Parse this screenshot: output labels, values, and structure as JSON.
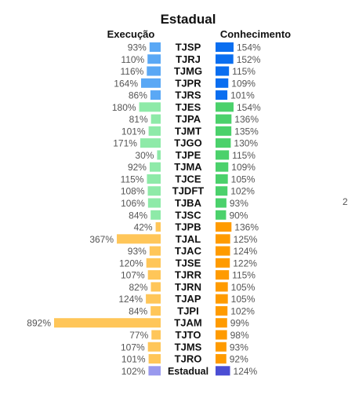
{
  "chart_data": {
    "type": "bar",
    "title": "Estadual",
    "left_header": "Execução",
    "right_header": "Conhecimento",
    "value_suffix": "%",
    "categories": [
      "TJSP",
      "TJRJ",
      "TJMG",
      "TJPR",
      "TJRS",
      "TJES",
      "TJPA",
      "TJMT",
      "TJGO",
      "TJPE",
      "TJMA",
      "TJCE",
      "TJDFT",
      "TJBA",
      "TJSC",
      "TJPB",
      "TJAL",
      "TJAC",
      "TJSE",
      "TJRR",
      "TJRN",
      "TJAP",
      "TJPI",
      "TJAM",
      "TJTO",
      "TJMS",
      "TJRO",
      "Estadual"
    ],
    "groups": [
      "blue",
      "blue",
      "blue",
      "blue",
      "blue",
      "green",
      "green",
      "green",
      "green",
      "green",
      "green",
      "green",
      "green",
      "green",
      "green",
      "orange",
      "orange",
      "orange",
      "orange",
      "orange",
      "orange",
      "orange",
      "orange",
      "orange",
      "orange",
      "orange",
      "orange",
      "total"
    ],
    "series": [
      {
        "name": "Execução",
        "values": [
          93,
          110,
          116,
          164,
          86,
          180,
          81,
          101,
          171,
          30,
          92,
          115,
          108,
          106,
          84,
          42,
          367,
          93,
          120,
          107,
          82,
          124,
          84,
          892,
          77,
          107,
          101,
          102
        ]
      },
      {
        "name": "Conhecimento",
        "values": [
          154,
          152,
          115,
          109,
          101,
          154,
          136,
          135,
          130,
          115,
          109,
          105,
          102,
          93,
          90,
          136,
          125,
          124,
          122,
          115,
          105,
          105,
          102,
          99,
          98,
          93,
          92,
          124
        ]
      }
    ],
    "colors": {
      "execucao": {
        "blue": "#5aa8f5",
        "green": "#8eeaa8",
        "orange": "#ffc659",
        "total": "#9999ee"
      },
      "conhecimento": {
        "blue": "#0a6ef0",
        "green": "#4bd16b",
        "orange": "#ff9b00",
        "total": "#4b4ed4"
      }
    },
    "stray_text": "2"
  }
}
